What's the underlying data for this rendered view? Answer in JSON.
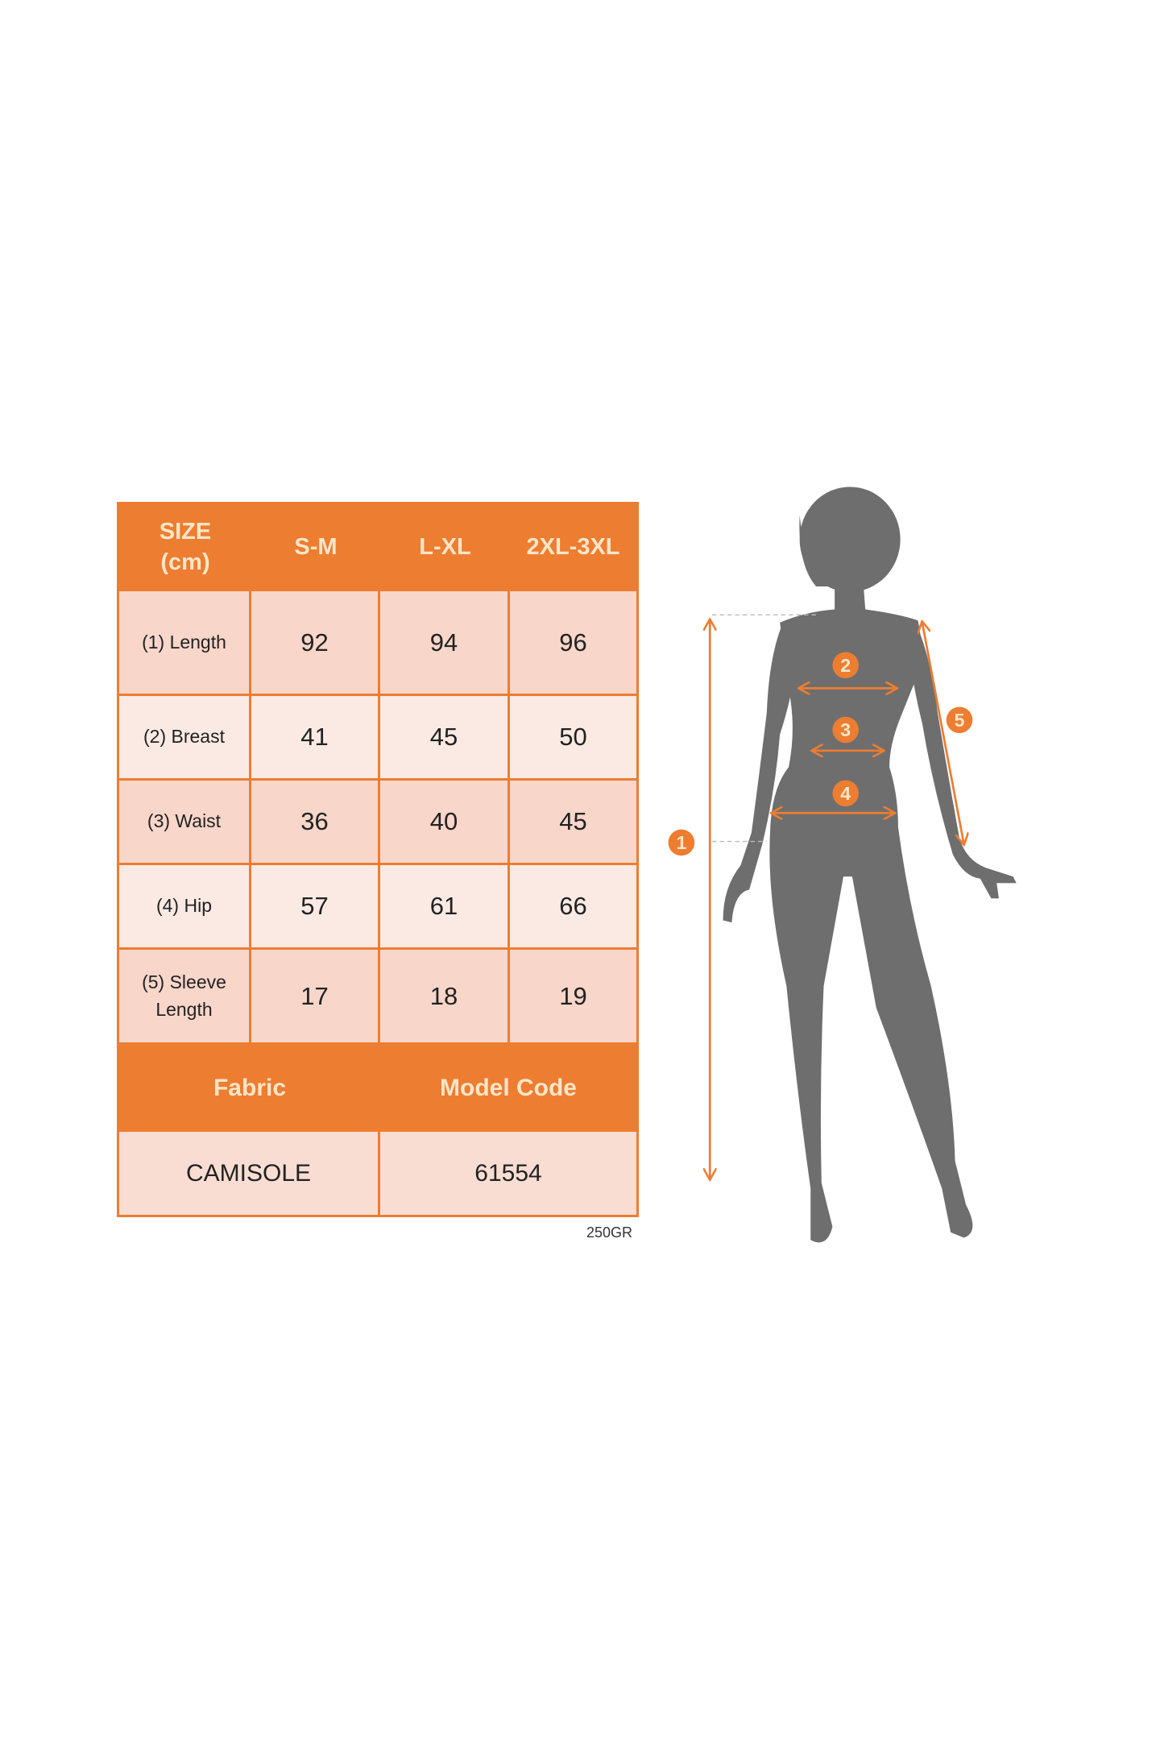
{
  "colors": {
    "accent": "#ED7D31",
    "header_text": "#FCE6C8",
    "cell_dark": "#F8D6C9",
    "cell_light": "#FBEAE4",
    "silhouette": "#6E6E6E"
  },
  "table": {
    "header": {
      "size_label_line1": "SIZE",
      "size_label_line2": "(cm)",
      "sizes": [
        "S-M",
        "L-XL",
        "2XL-3XL"
      ]
    },
    "rows": [
      {
        "label": "(1) Length",
        "values": [
          "92",
          "94",
          "96"
        ]
      },
      {
        "label": "(2) Breast",
        "values": [
          "41",
          "45",
          "50"
        ]
      },
      {
        "label": "(3) Waist",
        "values": [
          "36",
          "40",
          "45"
        ]
      },
      {
        "label": "(4) Hip",
        "values": [
          "57",
          "61",
          "66"
        ]
      },
      {
        "label_line1": "(5) Sleeve",
        "label_line2": "Length",
        "values": [
          "17",
          "18",
          "19"
        ]
      }
    ],
    "footer": {
      "fabric_label": "Fabric",
      "model_code_label": "Model Code",
      "fabric_value": "CAMISOLE",
      "model_code_value": "61554"
    }
  },
  "weight_note": "250GR",
  "figure": {
    "markers": [
      "1",
      "2",
      "3",
      "4",
      "5"
    ]
  }
}
